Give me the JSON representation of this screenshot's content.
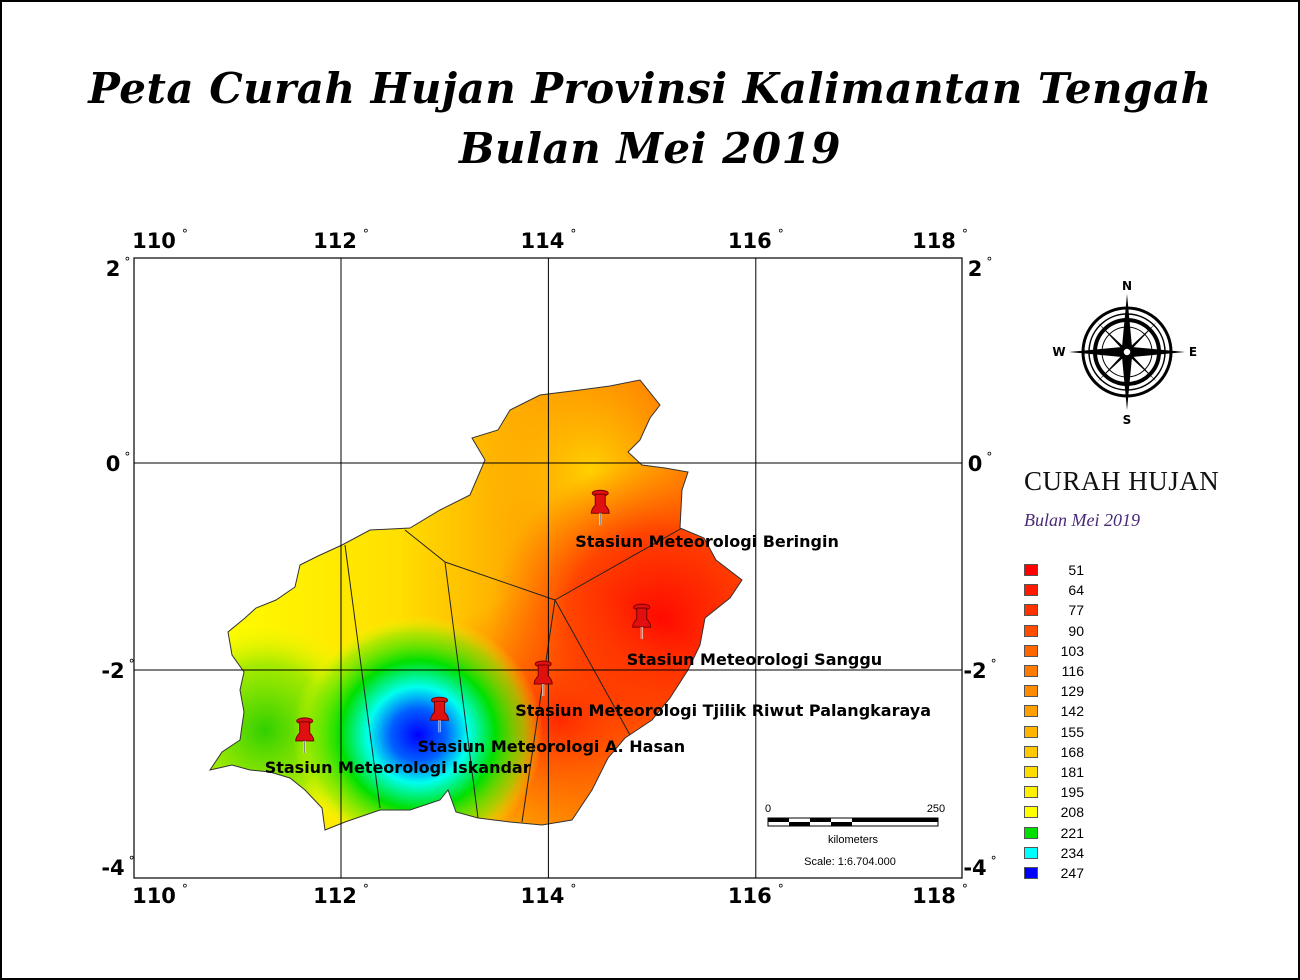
{
  "title": {
    "line1": "Peta Curah Hujan Provinsi Kalimantan Tengah",
    "line2": "Bulan Mei 2019"
  },
  "map": {
    "longitude_ticks": [
      {
        "value": 110,
        "label": "110"
      },
      {
        "value": 112,
        "label": "112"
      },
      {
        "value": 114,
        "label": "114"
      },
      {
        "value": 116,
        "label": "116"
      },
      {
        "value": 118,
        "label": "118"
      }
    ],
    "latitude_ticks": [
      {
        "value": 2,
        "label": "2"
      },
      {
        "value": 0,
        "label": "0"
      },
      {
        "value": -2,
        "label": "-2"
      },
      {
        "value": -4,
        "label": "-4"
      }
    ],
    "degree_symbol": "°",
    "stations": [
      {
        "name": "Stasiun Meteorologi Beringin",
        "lon": 114.5,
        "lat": -0.35
      },
      {
        "name": "Stasiun Meteorologi Sanggu",
        "lon": 114.9,
        "lat": -1.45
      },
      {
        "name": "Stasiun Meteorologi  Tjilik Riwut Palangkaraya",
        "lon": 113.95,
        "lat": -2.0
      },
      {
        "name": "Stasiun Meteorologi A. Hasan",
        "lon": 112.95,
        "lat": -2.35
      },
      {
        "name": "Stasiun Meteorologi Iskandar",
        "lon": 111.65,
        "lat": -2.55
      }
    ],
    "station_marker_color": "#e01010",
    "compass": {
      "n": "N",
      "e": "E",
      "s": "S",
      "w": "W"
    },
    "scale_bar": {
      "start_label": "0",
      "end_label": "250",
      "unit_label": "kilometers",
      "scale_text": "Scale: 1:6.704.000"
    }
  },
  "legend": {
    "title": "CURAH HUJAN",
    "subtitle": "Bulan Mei 2019",
    "items": [
      {
        "value": "51",
        "color": "#ff0000"
      },
      {
        "value": "64",
        "color": "#ff1a00"
      },
      {
        "value": "77",
        "color": "#ff3300"
      },
      {
        "value": "90",
        "color": "#ff4d00"
      },
      {
        "value": "103",
        "color": "#ff6600"
      },
      {
        "value": "116",
        "color": "#ff7a00"
      },
      {
        "value": "129",
        "color": "#ff8c00"
      },
      {
        "value": "142",
        "color": "#ffa000"
      },
      {
        "value": "155",
        "color": "#ffb400"
      },
      {
        "value": "168",
        "color": "#ffc800"
      },
      {
        "value": "181",
        "color": "#ffdc00"
      },
      {
        "value": "195",
        "color": "#fff000"
      },
      {
        "value": "208",
        "color": "#ffff00"
      },
      {
        "value": "221",
        "color": "#00e000"
      },
      {
        "value": "234",
        "color": "#00ffff"
      },
      {
        "value": "247",
        "color": "#0000ff"
      }
    ]
  }
}
